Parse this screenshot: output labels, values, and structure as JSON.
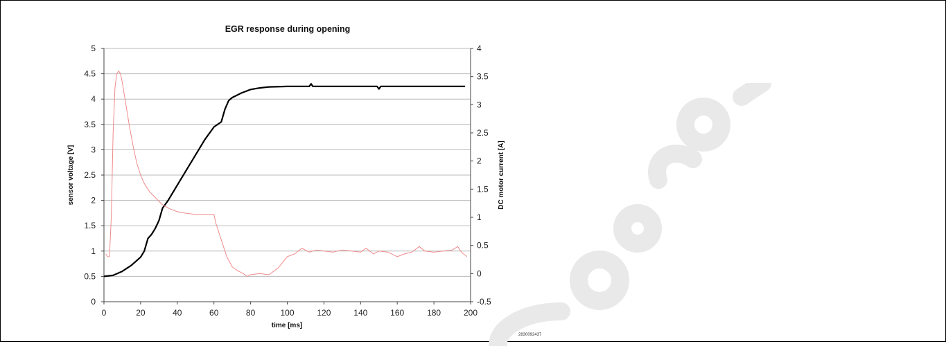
{
  "chart_data": {
    "type": "line",
    "title": "EGR response during opening",
    "xlabel": "time [ms]",
    "ylabel": "sensor voltage [V]",
    "y2label": "DC motor current [A]",
    "xlim": [
      0,
      200
    ],
    "ylim": [
      0,
      5
    ],
    "y2lim": [
      -0.5,
      4
    ],
    "x_ticks": [
      "0",
      "20",
      "40",
      "60",
      "80",
      "100",
      "120",
      "140",
      "160",
      "180",
      "200"
    ],
    "y_ticks": [
      "0",
      "0.5",
      "1",
      "1.5",
      "2",
      "2.5",
      "3",
      "3.5",
      "4",
      "4.5",
      "5"
    ],
    "y2_ticks": [
      "-0.5",
      "0",
      "0.5",
      "1",
      "1.5",
      "2",
      "2.5",
      "3",
      "3.5",
      "4"
    ],
    "grid": "horizontal",
    "series": [
      {
        "axis": "left",
        "color": "#000000",
        "points": [
          [
            0,
            0.5
          ],
          [
            5,
            0.52
          ],
          [
            10,
            0.6
          ],
          [
            15,
            0.72
          ],
          [
            20,
            0.88
          ],
          [
            22,
            1.0
          ],
          [
            24,
            1.25
          ],
          [
            26,
            1.33
          ],
          [
            28,
            1.45
          ],
          [
            30,
            1.6
          ],
          [
            32,
            1.85
          ],
          [
            35,
            2.0
          ],
          [
            40,
            2.3
          ],
          [
            45,
            2.6
          ],
          [
            50,
            2.9
          ],
          [
            55,
            3.2
          ],
          [
            60,
            3.45
          ],
          [
            64,
            3.55
          ],
          [
            66,
            3.8
          ],
          [
            68,
            3.97
          ],
          [
            70,
            4.03
          ],
          [
            75,
            4.12
          ],
          [
            80,
            4.19
          ],
          [
            85,
            4.22
          ],
          [
            90,
            4.24
          ],
          [
            100,
            4.25
          ],
          [
            112,
            4.25
          ],
          [
            113,
            4.3
          ],
          [
            114,
            4.25
          ],
          [
            125,
            4.25
          ],
          [
            140,
            4.25
          ],
          [
            149,
            4.25
          ],
          [
            150,
            4.2
          ],
          [
            151,
            4.25
          ],
          [
            160,
            4.25
          ],
          [
            170,
            4.25
          ],
          [
            180,
            4.25
          ],
          [
            190,
            4.25
          ],
          [
            197,
            4.25
          ]
        ]
      },
      {
        "axis": "right",
        "color": "#f08a8a",
        "points": [
          [
            1,
            0.35
          ],
          [
            2,
            0.3
          ],
          [
            3,
            0.3
          ],
          [
            4,
            1.0
          ],
          [
            5,
            2.5
          ],
          [
            6,
            3.3
          ],
          [
            7,
            3.55
          ],
          [
            8,
            3.6
          ],
          [
            9,
            3.55
          ],
          [
            10,
            3.4
          ],
          [
            12,
            3.0
          ],
          [
            14,
            2.6
          ],
          [
            16,
            2.25
          ],
          [
            18,
            1.95
          ],
          [
            20,
            1.75
          ],
          [
            22,
            1.6
          ],
          [
            25,
            1.45
          ],
          [
            28,
            1.35
          ],
          [
            32,
            1.22
          ],
          [
            36,
            1.15
          ],
          [
            40,
            1.1
          ],
          [
            45,
            1.07
          ],
          [
            50,
            1.05
          ],
          [
            55,
            1.05
          ],
          [
            60,
            1.05
          ],
          [
            61,
            0.9
          ],
          [
            63,
            0.7
          ],
          [
            65,
            0.5
          ],
          [
            67,
            0.3
          ],
          [
            70,
            0.12
          ],
          [
            73,
            0.05
          ],
          [
            76,
            0.0
          ],
          [
            78,
            -0.05
          ],
          [
            80,
            -0.02
          ],
          [
            85,
            0.0
          ],
          [
            90,
            -0.02
          ],
          [
            95,
            0.1
          ],
          [
            98,
            0.22
          ],
          [
            100,
            0.3
          ],
          [
            104,
            0.35
          ],
          [
            108,
            0.45
          ],
          [
            112,
            0.38
          ],
          [
            116,
            0.42
          ],
          [
            120,
            0.4
          ],
          [
            125,
            0.38
          ],
          [
            130,
            0.42
          ],
          [
            135,
            0.4
          ],
          [
            140,
            0.38
          ],
          [
            143,
            0.45
          ],
          [
            147,
            0.35
          ],
          [
            150,
            0.4
          ],
          [
            155,
            0.38
          ],
          [
            160,
            0.3
          ],
          [
            164,
            0.35
          ],
          [
            168,
            0.38
          ],
          [
            172,
            0.48
          ],
          [
            175,
            0.4
          ],
          [
            180,
            0.38
          ],
          [
            185,
            0.4
          ],
          [
            190,
            0.42
          ],
          [
            193,
            0.48
          ],
          [
            195,
            0.38
          ],
          [
            198,
            0.3
          ]
        ]
      }
    ]
  },
  "footnote": "2830092437"
}
